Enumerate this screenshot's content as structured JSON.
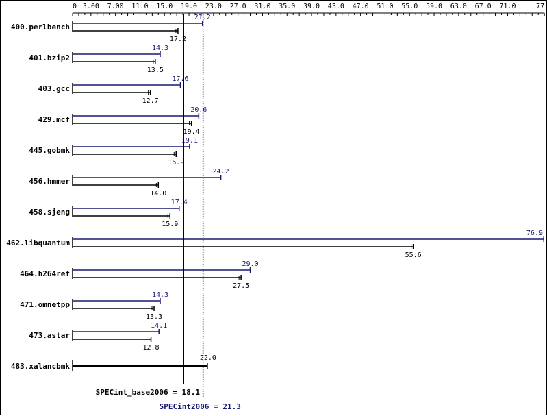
{
  "chart_data": {
    "type": "bar",
    "orientation": "horizontal",
    "x_ticks": [
      "0",
      "3.00",
      "7.00",
      "11.0",
      "15.0",
      "19.0",
      "23.0",
      "27.0",
      "31.0",
      "35.0",
      "39.0",
      "43.0",
      "47.0",
      "51.0",
      "55.0",
      "59.0",
      "63.0",
      "67.0",
      "71.0",
      "77.0"
    ],
    "x_tick_values": [
      0,
      3,
      7,
      11,
      15,
      19,
      23,
      27,
      31,
      35,
      39,
      43,
      47,
      51,
      55,
      59,
      63,
      67,
      71,
      77
    ],
    "xlim": [
      0,
      77
    ],
    "categories": [
      "400.perlbench",
      "401.bzip2",
      "403.gcc",
      "429.mcf",
      "445.gobmk",
      "456.hmmer",
      "458.sjeng",
      "462.libquantum",
      "464.h264ref",
      "471.omnetpp",
      "473.astar",
      "483.xalancbmk"
    ],
    "series": [
      {
        "role": "peak",
        "color": "#191970",
        "values": [
          21.2,
          14.3,
          17.6,
          20.6,
          19.1,
          24.2,
          17.4,
          76.9,
          29.0,
          14.3,
          14.1,
          22.0
        ],
        "labels": [
          "21.2",
          "14.3",
          "17.6",
          "20.6",
          "19.1",
          "24.2",
          "17.4",
          "76.9",
          "29.0",
          "14.3",
          "14.1",
          "22.0"
        ]
      },
      {
        "role": "base",
        "color": "#000000",
        "values": [
          17.2,
          13.5,
          12.7,
          19.4,
          16.9,
          14.0,
          15.9,
          55.6,
          27.5,
          13.3,
          12.8,
          22.0
        ],
        "labels": [
          "17.2",
          "13.5",
          "12.7",
          "19.4",
          "16.9",
          "14.0",
          "15.9",
          "55.6",
          "27.5",
          "13.3",
          "12.8",
          "22.0"
        ]
      }
    ],
    "reference_lines": [
      {
        "role": "base",
        "value": 18.1,
        "label": "SPECint_base2006 = 18.1",
        "color": "#000000",
        "style": "solid"
      },
      {
        "role": "peak",
        "value": 21.3,
        "label": "SPECint2006 = 21.3",
        "color": "#191970",
        "style": "dotted"
      }
    ],
    "grid": false,
    "legend": "none",
    "title": "",
    "xlabel": "",
    "ylabel": ""
  }
}
